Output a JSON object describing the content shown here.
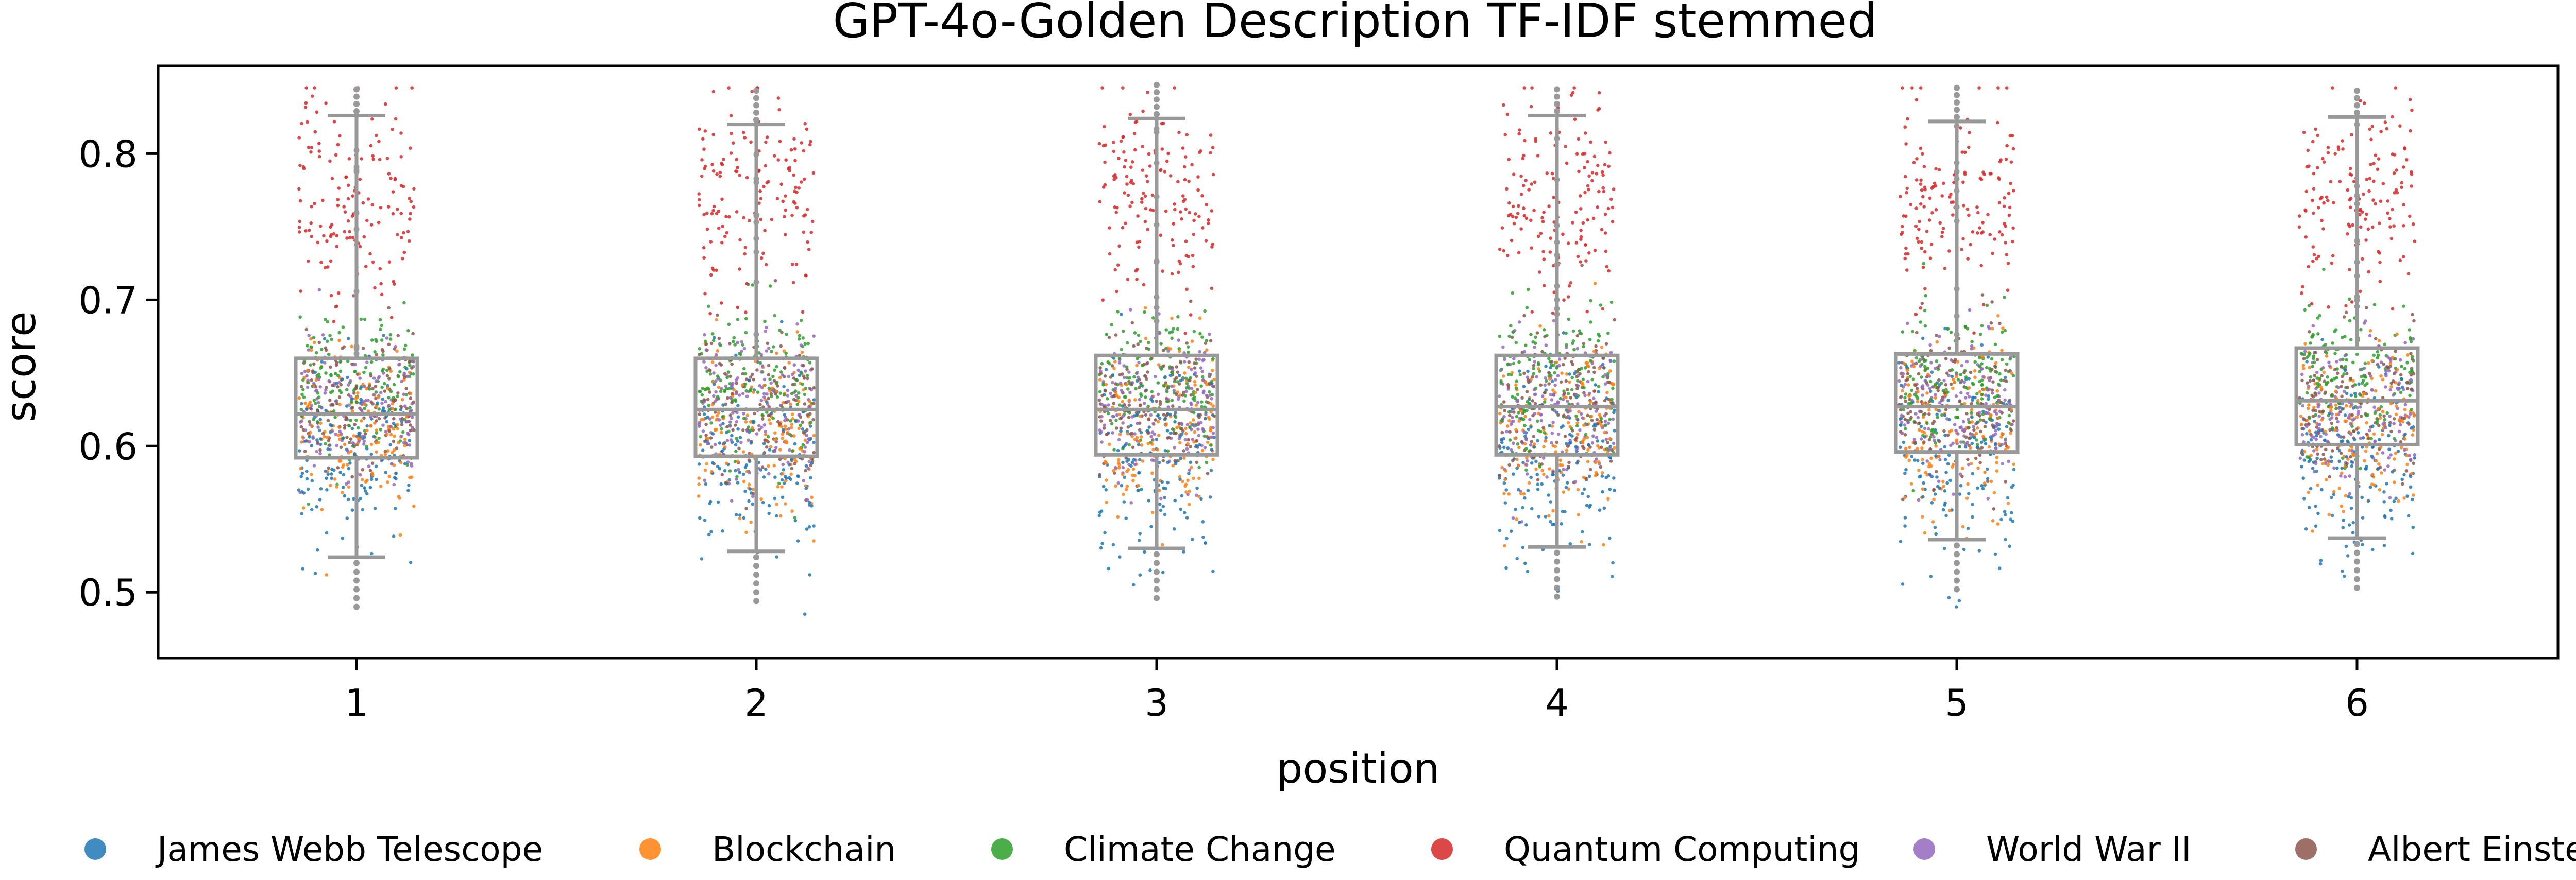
{
  "chart_data": {
    "type": "box",
    "title": "GPT-4o-Golden Description TF-IDF stemmed",
    "xlabel": "position",
    "ylabel": "score",
    "ylim": [
      0.455,
      0.86
    ],
    "yticks": [
      0.5,
      0.6,
      0.7,
      0.8
    ],
    "categories": [
      "1",
      "2",
      "3",
      "4",
      "5",
      "6"
    ],
    "boxes": [
      {
        "position": "1",
        "whisker_low": 0.524,
        "q1": 0.592,
        "median": 0.622,
        "q3": 0.66,
        "whisker_high": 0.826
      },
      {
        "position": "2",
        "whisker_low": 0.528,
        "q1": 0.593,
        "median": 0.625,
        "q3": 0.66,
        "whisker_high": 0.82
      },
      {
        "position": "3",
        "whisker_low": 0.53,
        "q1": 0.594,
        "median": 0.625,
        "q3": 0.662,
        "whisker_high": 0.824
      },
      {
        "position": "4",
        "whisker_low": 0.531,
        "q1": 0.594,
        "median": 0.627,
        "q3": 0.662,
        "whisker_high": 0.826
      },
      {
        "position": "5",
        "whisker_low": 0.536,
        "q1": 0.596,
        "median": 0.627,
        "q3": 0.663,
        "whisker_high": 0.822
      },
      {
        "position": "6",
        "whisker_low": 0.537,
        "q1": 0.601,
        "median": 0.631,
        "q3": 0.667,
        "whisker_high": 0.825
      }
    ],
    "series": [
      {
        "name": "James Webb Telescope",
        "color": "#1f77b4"
      },
      {
        "name": "Blockchain",
        "color": "#ff7f0e"
      },
      {
        "name": "Climate Change",
        "color": "#2ca02c"
      },
      {
        "name": "Quantum Computing",
        "color": "#d62728"
      },
      {
        "name": "World War II",
        "color": "#9467bd"
      },
      {
        "name": "Albert Einstein",
        "color": "#8c564b"
      }
    ],
    "legend_position": "bottom",
    "box_color": "#999999",
    "grid": false
  }
}
